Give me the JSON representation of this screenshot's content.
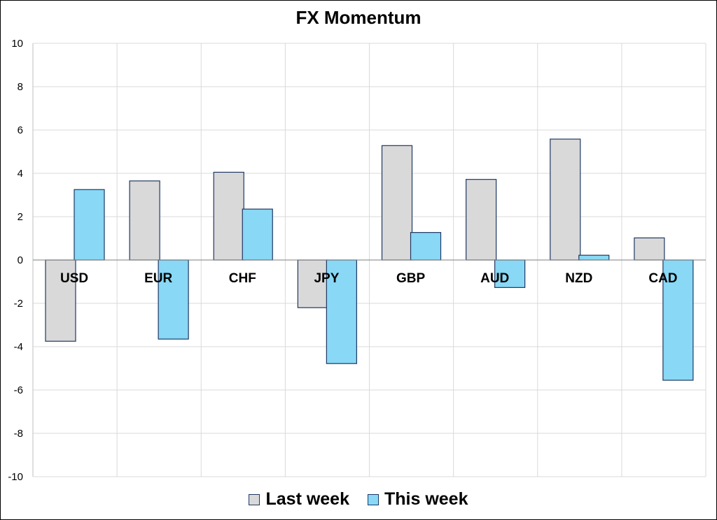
{
  "chart_data": {
    "type": "bar",
    "title": "FX Momentum",
    "xlabel": "",
    "ylabel": "",
    "categories": [
      "USD",
      "EUR",
      "CHF",
      "JPY",
      "GBP",
      "AUD",
      "NZD",
      "CAD"
    ],
    "series": [
      {
        "name": "Last week",
        "color": "#d9d9d9",
        "values": [
          -3.75,
          3.65,
          4.05,
          -2.2,
          5.28,
          3.72,
          5.58,
          1.02
        ]
      },
      {
        "name": "This week",
        "color": "#89d8f5",
        "values": [
          3.25,
          -3.65,
          2.35,
          -4.78,
          1.27,
          -1.27,
          0.22,
          -5.55
        ]
      }
    ],
    "ylim": [
      -10,
      10
    ],
    "yticks": [
      "10",
      "8",
      "6",
      "4",
      "2",
      "0",
      "-2",
      "-4",
      "-6",
      "-8",
      "-10"
    ],
    "grid": true,
    "legend": "bottom",
    "bar_edge_color": "#1f3864"
  }
}
